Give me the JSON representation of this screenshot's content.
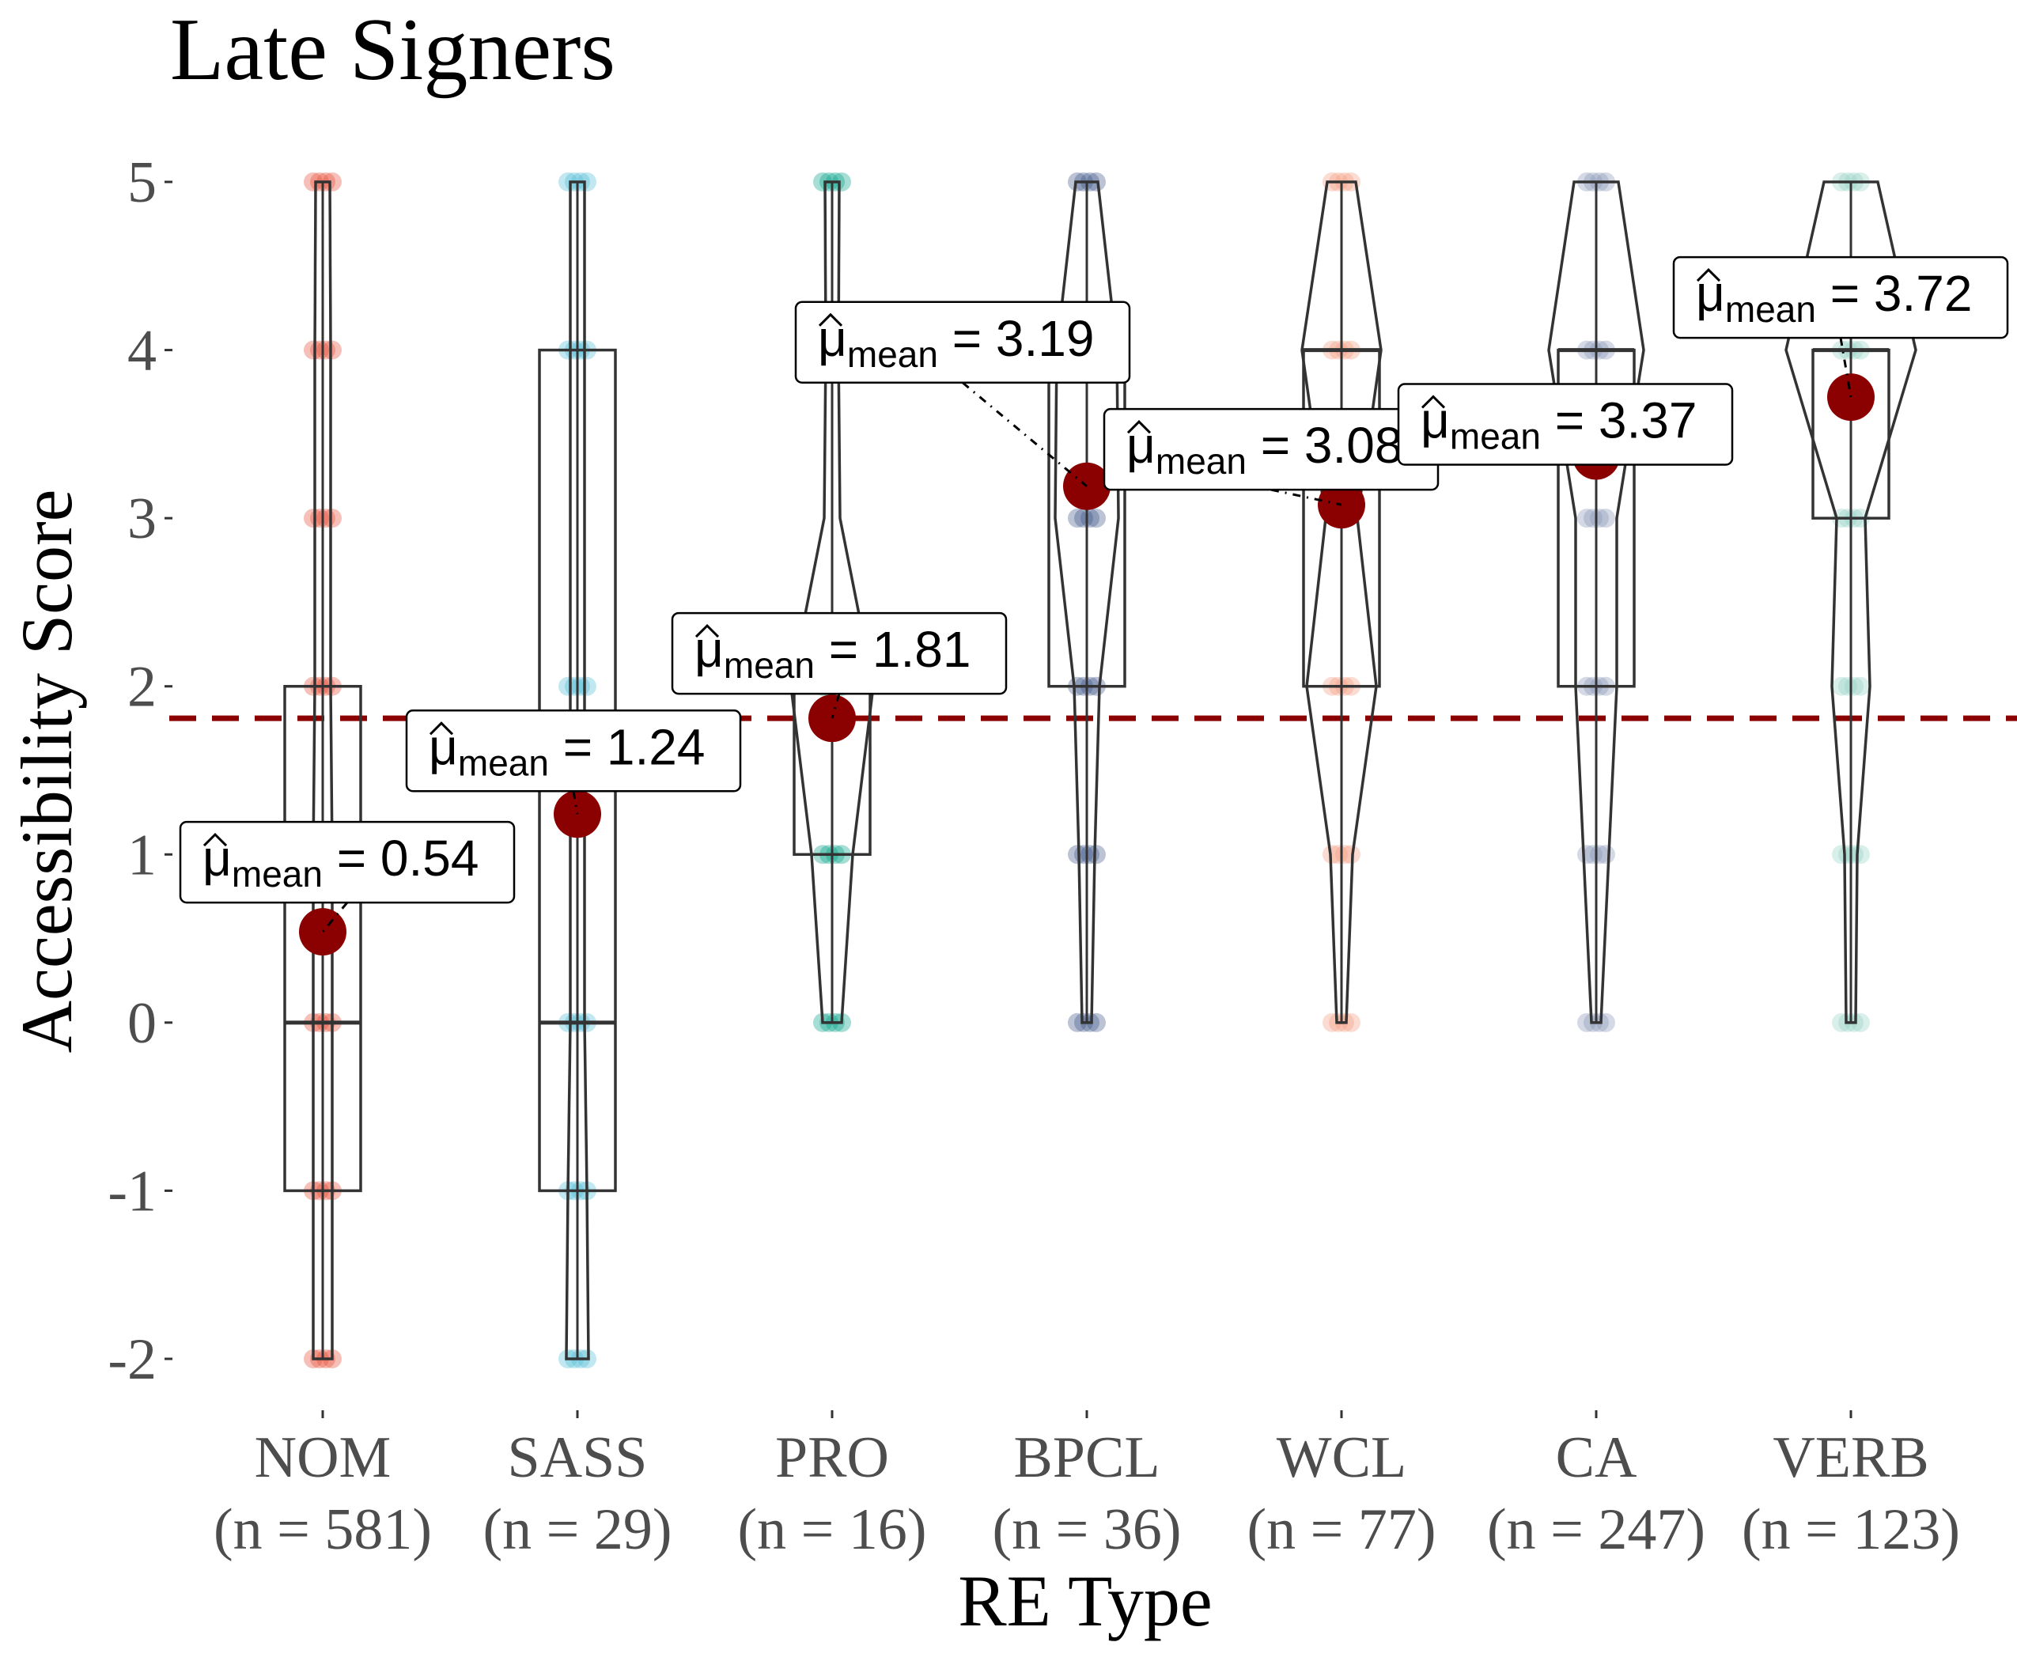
{
  "chart_data": {
    "type": "violin",
    "title": "Late Signers",
    "xlabel": "RE Type",
    "ylabel": "Accessibility Score",
    "ylim": [
      -2,
      5
    ],
    "yticks": [
      "5",
      "4",
      "3",
      "2",
      "1",
      "0",
      "-1",
      "-2"
    ],
    "grid": false,
    "reference_line": {
      "value": 1.81,
      "style": "dashed",
      "color": "#8b0000"
    },
    "mean_label_prefix": "μ",
    "mean_label_subscript": "mean",
    "categories": [
      {
        "name": "NOM",
        "n_label": "(n = 581)",
        "mean": 0.54,
        "mean_label": "= 0.54",
        "q1": -1,
        "median": 0,
        "q3": 2,
        "whisker_low": -2,
        "whisker_high": 5,
        "color": "#e64b35",
        "points": [
          -2,
          -1,
          0,
          2,
          3,
          4,
          5
        ]
      },
      {
        "name": "SASS",
        "n_label": "(n = 29)",
        "mean": 1.24,
        "mean_label": "= 1.24",
        "q1": -1,
        "median": 0,
        "q3": 4,
        "whisker_low": -2,
        "whisker_high": 5,
        "color": "#4dbbd5",
        "points": [
          -2,
          -1,
          0,
          2,
          4,
          5
        ]
      },
      {
        "name": "PRO",
        "n_label": "(n = 16)",
        "mean": 1.81,
        "mean_label": "= 1.81",
        "q1": 1,
        "median": 2,
        "q3": 2,
        "whisker_low": 0,
        "whisker_high": 5,
        "color": "#00a087",
        "points": [
          0,
          1,
          2,
          5
        ]
      },
      {
        "name": "BPCL",
        "n_label": "(n = 36)",
        "mean": 3.19,
        "mean_label": "= 3.19",
        "q1": 2,
        "median": 4,
        "q3": 4,
        "whisker_low": 0,
        "whisker_high": 5,
        "color": "#3c5488",
        "points": [
          0,
          1,
          2,
          3,
          4,
          5
        ]
      },
      {
        "name": "WCL",
        "n_label": "(n = 77)",
        "mean": 3.08,
        "mean_label": "= 3.08",
        "q1": 2,
        "median": 4,
        "q3": 4,
        "whisker_low": 0,
        "whisker_high": 5,
        "color": "#f39b7f",
        "points": [
          0,
          1,
          2,
          4,
          5
        ]
      },
      {
        "name": "CA",
        "n_label": "(n = 247)",
        "mean": 3.37,
        "mean_label": "= 3.37",
        "q1": 2,
        "median": 4,
        "q3": 4,
        "whisker_low": 0,
        "whisker_high": 5,
        "color": "#8491b4",
        "points": [
          0,
          1,
          2,
          3,
          4,
          5
        ]
      },
      {
        "name": "VERB",
        "n_label": "(n = 123)",
        "mean": 3.72,
        "mean_label": "= 3.72",
        "q1": 3,
        "median": 4,
        "q3": 4,
        "whisker_low": 0,
        "whisker_high": 5,
        "color": "#91d1c2",
        "points": [
          0,
          1,
          2,
          3,
          4,
          5
        ]
      }
    ]
  },
  "colors": {
    "mean_point": "#8b0000",
    "outline": "#333333"
  }
}
